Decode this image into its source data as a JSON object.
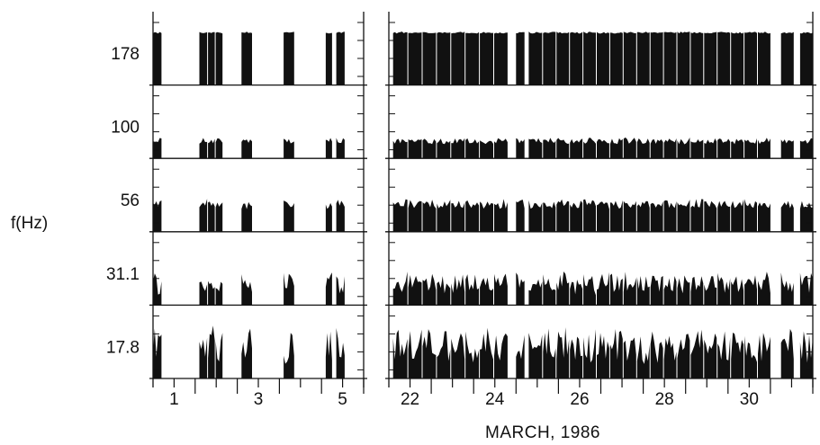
{
  "chart_data": {
    "type": "bar",
    "ylabel": "f(Hz)",
    "xlabel": "MARCH, 1986",
    "rows": [
      "178",
      "100",
      "56",
      "31.1",
      "17.8"
    ],
    "panels": [
      {
        "ticks": [
          "1",
          "3",
          "5"
        ],
        "x_range_days": [
          0.5,
          5.5
        ],
        "blocks": [
          {
            "start": 0.5,
            "end": 0.7,
            "pieces": 1
          },
          {
            "start": 1.6,
            "end": 2.15,
            "pieces": 3
          },
          {
            "start": 2.6,
            "end": 2.85,
            "pieces": 1
          },
          {
            "start": 3.6,
            "end": 3.85,
            "pieces": 1
          },
          {
            "start": 4.6,
            "end": 4.75,
            "pieces": 1
          },
          {
            "start": 4.85,
            "end": 5.05,
            "pieces": 1
          }
        ]
      },
      {
        "ticks": [
          "22",
          "24",
          "26",
          "28",
          "30"
        ],
        "x_range_days": [
          21.5,
          31.5
        ],
        "blocks": [
          {
            "start": 21.6,
            "end": 24.3,
            "pieces": 8
          },
          {
            "start": 24.5,
            "end": 24.7,
            "pieces": 1
          },
          {
            "start": 24.8,
            "end": 30.5,
            "pieces": 18
          },
          {
            "start": 30.75,
            "end": 31.05,
            "pieces": 1
          },
          {
            "start": 31.2,
            "end": 31.5,
            "pieces": 1
          }
        ]
      }
    ],
    "levels": {
      "178": {
        "base": 0.7,
        "var": 0.03
      },
      "100": {
        "base": 0.19,
        "var": 0.1
      },
      "56": {
        "base": 0.3,
        "var": 0.15
      },
      "31.1": {
        "base": 0.12,
        "var": 0.35
      },
      "17.8": {
        "base": 0.18,
        "var": 0.55
      }
    },
    "grid": false,
    "legend": "none"
  }
}
